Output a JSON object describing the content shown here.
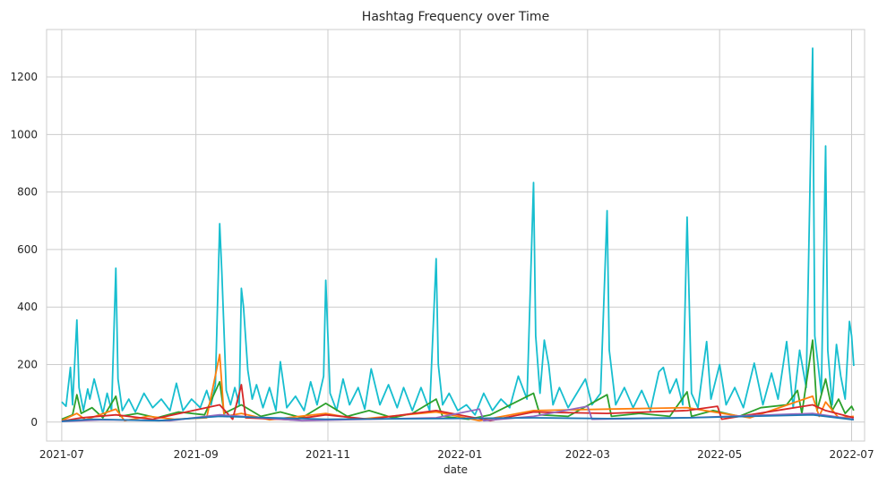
{
  "chart_data": {
    "type": "line",
    "title": "Hashtag Frequency over Time",
    "xlabel": "date",
    "ylabel": "",
    "x_range": [
      "2021-06-24",
      "2022-07-07"
    ],
    "ylim": [
      -66,
      1365
    ],
    "x_ticks": [
      {
        "date": "2021-07-01",
        "label": "2021-07"
      },
      {
        "date": "2021-09-01",
        "label": "2021-09"
      },
      {
        "date": "2021-11-01",
        "label": "2021-11"
      },
      {
        "date": "2022-01-01",
        "label": "2022-01"
      },
      {
        "date": "2022-03-01",
        "label": "2022-03"
      },
      {
        "date": "2022-05-01",
        "label": "2022-05"
      },
      {
        "date": "2022-07-01",
        "label": "2022-07"
      }
    ],
    "y_ticks": [
      0,
      200,
      400,
      600,
      800,
      1000,
      1200
    ],
    "grid": true,
    "legend": "none",
    "series": [
      {
        "color": "#17becf",
        "points": [
          [
            "2021-07-01",
            70
          ],
          [
            "2021-07-03",
            55
          ],
          [
            "2021-07-05",
            190
          ],
          [
            "2021-07-06",
            60
          ],
          [
            "2021-07-08",
            355
          ],
          [
            "2021-07-09",
            120
          ],
          [
            "2021-07-11",
            40
          ],
          [
            "2021-07-13",
            115
          ],
          [
            "2021-07-14",
            80
          ],
          [
            "2021-07-16",
            150
          ],
          [
            "2021-07-18",
            90
          ],
          [
            "2021-07-20",
            30
          ],
          [
            "2021-07-22",
            100
          ],
          [
            "2021-07-24",
            40
          ],
          [
            "2021-07-26",
            535
          ],
          [
            "2021-07-27",
            150
          ],
          [
            "2021-07-29",
            40
          ],
          [
            "2021-08-01",
            80
          ],
          [
            "2021-08-04",
            35
          ],
          [
            "2021-08-08",
            100
          ],
          [
            "2021-08-12",
            50
          ],
          [
            "2021-08-16",
            80
          ],
          [
            "2021-08-20",
            40
          ],
          [
            "2021-08-23",
            135
          ],
          [
            "2021-08-26",
            40
          ],
          [
            "2021-08-30",
            80
          ],
          [
            "2021-09-03",
            50
          ],
          [
            "2021-09-06",
            110
          ],
          [
            "2021-09-08",
            60
          ],
          [
            "2021-09-10",
            130
          ],
          [
            "2021-09-12",
            690
          ],
          [
            "2021-09-13",
            520
          ],
          [
            "2021-09-15",
            110
          ],
          [
            "2021-09-17",
            60
          ],
          [
            "2021-09-19",
            120
          ],
          [
            "2021-09-21",
            60
          ],
          [
            "2021-09-22",
            465
          ],
          [
            "2021-09-23",
            400
          ],
          [
            "2021-09-25",
            180
          ],
          [
            "2021-09-27",
            80
          ],
          [
            "2021-09-29",
            130
          ],
          [
            "2021-10-02",
            50
          ],
          [
            "2021-10-05",
            120
          ],
          [
            "2021-10-08",
            40
          ],
          [
            "2021-10-10",
            210
          ],
          [
            "2021-10-13",
            50
          ],
          [
            "2021-10-17",
            90
          ],
          [
            "2021-10-21",
            40
          ],
          [
            "2021-10-24",
            140
          ],
          [
            "2021-10-27",
            60
          ],
          [
            "2021-10-30",
            160
          ],
          [
            "2021-10-31",
            493
          ],
          [
            "2021-11-02",
            100
          ],
          [
            "2021-11-05",
            40
          ],
          [
            "2021-11-08",
            150
          ],
          [
            "2021-11-11",
            60
          ],
          [
            "2021-11-15",
            120
          ],
          [
            "2021-11-18",
            45
          ],
          [
            "2021-11-21",
            185
          ],
          [
            "2021-11-25",
            60
          ],
          [
            "2021-11-29",
            130
          ],
          [
            "2021-12-03",
            50
          ],
          [
            "2021-12-06",
            120
          ],
          [
            "2021-12-10",
            40
          ],
          [
            "2021-12-14",
            120
          ],
          [
            "2021-12-18",
            40
          ],
          [
            "2021-12-21",
            568
          ],
          [
            "2021-12-22",
            200
          ],
          [
            "2021-12-24",
            60
          ],
          [
            "2021-12-27",
            100
          ],
          [
            "2021-12-31",
            40
          ],
          [
            "2022-01-04",
            60
          ],
          [
            "2022-01-08",
            25
          ],
          [
            "2022-01-12",
            100
          ],
          [
            "2022-01-16",
            40
          ],
          [
            "2022-01-20",
            80
          ],
          [
            "2022-01-24",
            50
          ],
          [
            "2022-01-28",
            160
          ],
          [
            "2022-02-01",
            80
          ],
          [
            "2022-02-04",
            833
          ],
          [
            "2022-02-05",
            300
          ],
          [
            "2022-02-07",
            100
          ],
          [
            "2022-02-09",
            285
          ],
          [
            "2022-02-11",
            200
          ],
          [
            "2022-02-13",
            60
          ],
          [
            "2022-02-16",
            120
          ],
          [
            "2022-02-20",
            50
          ],
          [
            "2022-02-24",
            100
          ],
          [
            "2022-02-28",
            150
          ],
          [
            "2022-03-03",
            60
          ],
          [
            "2022-03-07",
            100
          ],
          [
            "2022-03-10",
            735
          ],
          [
            "2022-03-11",
            250
          ],
          [
            "2022-03-14",
            60
          ],
          [
            "2022-03-18",
            120
          ],
          [
            "2022-03-22",
            50
          ],
          [
            "2022-03-26",
            110
          ],
          [
            "2022-03-30",
            40
          ],
          [
            "2022-04-03",
            175
          ],
          [
            "2022-04-05",
            190
          ],
          [
            "2022-04-08",
            100
          ],
          [
            "2022-04-11",
            150
          ],
          [
            "2022-04-14",
            60
          ],
          [
            "2022-04-16",
            713
          ],
          [
            "2022-04-18",
            100
          ],
          [
            "2022-04-21",
            50
          ],
          [
            "2022-04-25",
            280
          ],
          [
            "2022-04-27",
            80
          ],
          [
            "2022-05-01",
            200
          ],
          [
            "2022-05-04",
            60
          ],
          [
            "2022-05-08",
            120
          ],
          [
            "2022-05-12",
            50
          ],
          [
            "2022-05-17",
            205
          ],
          [
            "2022-05-21",
            60
          ],
          [
            "2022-05-25",
            170
          ],
          [
            "2022-05-28",
            80
          ],
          [
            "2022-06-01",
            280
          ],
          [
            "2022-06-04",
            50
          ],
          [
            "2022-06-07",
            250
          ],
          [
            "2022-06-10",
            120
          ],
          [
            "2022-06-13",
            1300
          ],
          [
            "2022-06-14",
            300
          ],
          [
            "2022-06-17",
            100
          ],
          [
            "2022-06-19",
            960
          ],
          [
            "2022-06-20",
            250
          ],
          [
            "2022-06-22",
            60
          ],
          [
            "2022-06-24",
            270
          ],
          [
            "2022-06-26",
            160
          ],
          [
            "2022-06-28",
            80
          ],
          [
            "2022-06-30",
            350
          ],
          [
            "2022-07-01",
            300
          ],
          [
            "2022-07-02",
            195
          ]
        ]
      },
      {
        "color": "#2ca02c",
        "points": [
          [
            "2021-07-01",
            10
          ],
          [
            "2021-07-06",
            25
          ],
          [
            "2021-07-08",
            95
          ],
          [
            "2021-07-10",
            30
          ],
          [
            "2021-07-15",
            50
          ],
          [
            "2021-07-20",
            15
          ],
          [
            "2021-07-26",
            90
          ],
          [
            "2021-07-28",
            20
          ],
          [
            "2021-08-05",
            30
          ],
          [
            "2021-08-14",
            15
          ],
          [
            "2021-08-24",
            35
          ],
          [
            "2021-09-05",
            25
          ],
          [
            "2021-09-12",
            140
          ],
          [
            "2021-09-14",
            30
          ],
          [
            "2021-09-22",
            60
          ],
          [
            "2021-10-01",
            20
          ],
          [
            "2021-10-10",
            35
          ],
          [
            "2021-10-20",
            15
          ],
          [
            "2021-10-31",
            65
          ],
          [
            "2021-11-10",
            20
          ],
          [
            "2021-11-20",
            40
          ],
          [
            "2021-12-01",
            15
          ],
          [
            "2021-12-10",
            30
          ],
          [
            "2021-12-21",
            80
          ],
          [
            "2021-12-24",
            20
          ],
          [
            "2022-01-05",
            10
          ],
          [
            "2022-01-15",
            25
          ],
          [
            "2022-02-04",
            100
          ],
          [
            "2022-02-07",
            25
          ],
          [
            "2022-02-20",
            20
          ],
          [
            "2022-03-10",
            95
          ],
          [
            "2022-03-12",
            20
          ],
          [
            "2022-03-25",
            30
          ],
          [
            "2022-04-08",
            20
          ],
          [
            "2022-04-16",
            105
          ],
          [
            "2022-04-18",
            20
          ],
          [
            "2022-04-28",
            40
          ],
          [
            "2022-05-10",
            20
          ],
          [
            "2022-05-20",
            50
          ],
          [
            "2022-06-01",
            60
          ],
          [
            "2022-06-06",
            110
          ],
          [
            "2022-06-08",
            30
          ],
          [
            "2022-06-13",
            285
          ],
          [
            "2022-06-15",
            40
          ],
          [
            "2022-06-19",
            150
          ],
          [
            "2022-06-22",
            40
          ],
          [
            "2022-06-25",
            80
          ],
          [
            "2022-06-28",
            30
          ],
          [
            "2022-07-01",
            55
          ],
          [
            "2022-07-02",
            40
          ]
        ]
      },
      {
        "color": "#ff7f0e",
        "points": [
          [
            "2021-07-01",
            5
          ],
          [
            "2021-07-08",
            30
          ],
          [
            "2021-07-12",
            8
          ],
          [
            "2021-07-26",
            45
          ],
          [
            "2021-07-30",
            5
          ],
          [
            "2021-08-10",
            20
          ],
          [
            "2021-08-22",
            10
          ],
          [
            "2021-09-06",
            15
          ],
          [
            "2021-09-12",
            235
          ],
          [
            "2021-09-14",
            20
          ],
          [
            "2021-09-22",
            30
          ],
          [
            "2021-10-05",
            8
          ],
          [
            "2021-10-31",
            30
          ],
          [
            "2021-11-15",
            10
          ],
          [
            "2021-12-21",
            35
          ],
          [
            "2022-01-10",
            5
          ],
          [
            "2022-02-04",
            40
          ],
          [
            "2022-03-10",
            45
          ],
          [
            "2022-04-16",
            50
          ],
          [
            "2022-05-15",
            15
          ],
          [
            "2022-06-13",
            90
          ],
          [
            "2022-06-16",
            20
          ],
          [
            "2022-06-19",
            70
          ],
          [
            "2022-06-25",
            15
          ],
          [
            "2022-07-02",
            20
          ]
        ]
      },
      {
        "color": "#d62728",
        "points": [
          [
            "2021-07-01",
            3
          ],
          [
            "2021-07-10",
            15
          ],
          [
            "2021-07-26",
            25
          ],
          [
            "2021-08-12",
            10
          ],
          [
            "2021-09-12",
            60
          ],
          [
            "2021-09-18",
            10
          ],
          [
            "2021-09-22",
            130
          ],
          [
            "2021-09-24",
            15
          ],
          [
            "2021-10-15",
            8
          ],
          [
            "2021-10-31",
            25
          ],
          [
            "2021-11-20",
            10
          ],
          [
            "2021-12-21",
            40
          ],
          [
            "2022-01-15",
            5
          ],
          [
            "2022-02-04",
            35
          ],
          [
            "2022-03-10",
            30
          ],
          [
            "2022-04-16",
            40
          ],
          [
            "2022-04-30",
            55
          ],
          [
            "2022-05-02",
            10
          ],
          [
            "2022-06-13",
            60
          ],
          [
            "2022-06-19",
            40
          ],
          [
            "2022-07-02",
            15
          ]
        ]
      },
      {
        "color": "#9467bd",
        "points": [
          [
            "2021-07-01",
            2
          ],
          [
            "2021-07-20",
            8
          ],
          [
            "2021-08-20",
            5
          ],
          [
            "2021-09-12",
            25
          ],
          [
            "2021-10-20",
            5
          ],
          [
            "2021-12-21",
            15
          ],
          [
            "2022-01-10",
            45
          ],
          [
            "2022-01-12",
            5
          ],
          [
            "2022-02-04",
            20
          ],
          [
            "2022-03-01",
            55
          ],
          [
            "2022-03-03",
            10
          ],
          [
            "2022-04-16",
            15
          ],
          [
            "2022-06-13",
            30
          ],
          [
            "2022-07-02",
            10
          ]
        ]
      },
      {
        "color": "#1f77b4",
        "points": [
          [
            "2021-07-01",
            3
          ],
          [
            "2021-07-15",
            10
          ],
          [
            "2021-08-15",
            5
          ],
          [
            "2021-09-12",
            20
          ],
          [
            "2021-10-31",
            10
          ],
          [
            "2021-12-21",
            12
          ],
          [
            "2022-02-04",
            15
          ],
          [
            "2022-03-10",
            12
          ],
          [
            "2022-04-16",
            15
          ],
          [
            "2022-06-13",
            25
          ],
          [
            "2022-07-02",
            8
          ]
        ]
      }
    ]
  }
}
